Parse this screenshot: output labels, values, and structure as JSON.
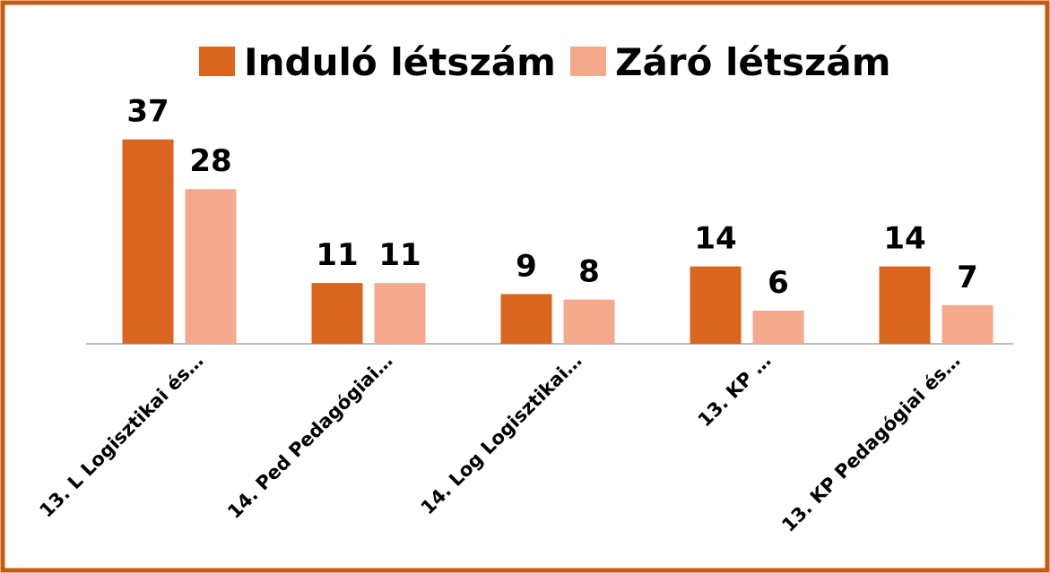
{
  "chart_data": {
    "type": "bar",
    "categories": [
      "13. L Logisztikai és…",
      "14. Ped Pedagógiai…",
      "14. Log Logisztikai…",
      "13. KP …",
      "13. KP Pedagógiai és…"
    ],
    "series": [
      {
        "name": "Induló létszám",
        "color": "#d9651f",
        "values": [
          37,
          11,
          9,
          14,
          14
        ]
      },
      {
        "name": "Záró létszám",
        "color": "#f4a98c",
        "values": [
          28,
          11,
          8,
          6,
          7
        ]
      }
    ],
    "legend": "top"
  }
}
